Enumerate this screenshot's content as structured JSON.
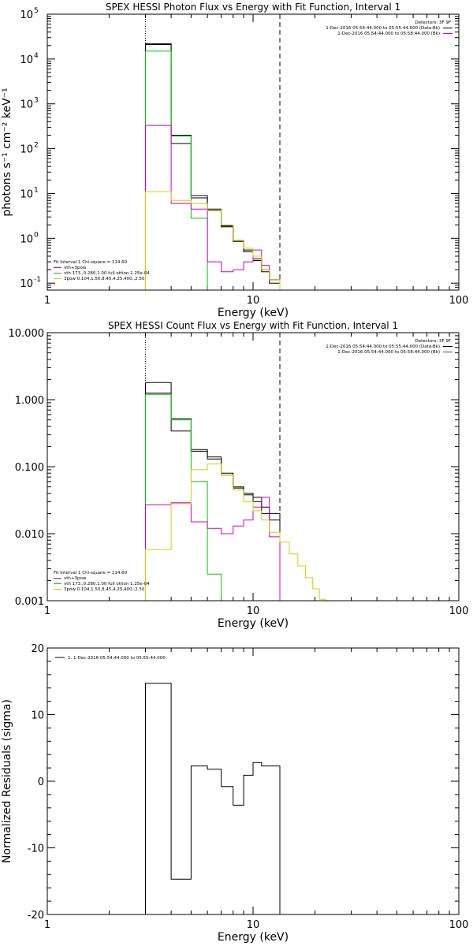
{
  "chart_data": [
    {
      "type": "line",
      "title": "SPEX HESSI Photon Flux vs Energy with Fit Function, Interval 1",
      "xlabel": "Energy (keV)",
      "ylabel": "photons s⁻¹ cm⁻² keV⁻¹",
      "xscale": "log",
      "yscale": "log",
      "xlim": [
        1,
        100
      ],
      "ylim": [
        0.07,
        100000
      ],
      "xticks": [
        {
          "v": 1,
          "label": "1"
        },
        {
          "v": 10,
          "label": "10"
        },
        {
          "v": 100,
          "label": "100"
        }
      ],
      "yticks": [
        {
          "v": 0.1,
          "label": "10",
          "exp": "-1"
        },
        {
          "v": 1,
          "label": "10",
          "exp": "0"
        },
        {
          "v": 10,
          "label": "10",
          "exp": "1"
        },
        {
          "v": 100,
          "label": "10",
          "exp": "2"
        },
        {
          "v": 1000,
          "label": "10",
          "exp": "3"
        },
        {
          "v": 10000,
          "label": "10",
          "exp": "4"
        },
        {
          "v": 100000,
          "label": "10",
          "exp": "5"
        }
      ],
      "vlines": [
        {
          "x": 3,
          "style": "dotted"
        },
        {
          "x": 13.5,
          "style": "dashed"
        }
      ],
      "info": {
        "detectors": "Detectors: 3F 9F",
        "line1": "1-Dec-2016 05:54:44.000 to 05:55:44.000 (Data-Bk)",
        "line2": "1-Dec-2016 05:54:44.000 to 05:58:44.000 (Bk)",
        "line1_color": "#000000",
        "line2_color": "#cc00cc"
      },
      "fit_legend": {
        "header": "Fit Interval 1   Chi-square = 114.60",
        "entries": [
          {
            "label": "vth+3pow",
            "color": "#cc00cc"
          },
          {
            "label": "vth 173.,0.280,1.00  full ottion 1.25e-04",
            "color": "#00cc00"
          },
          {
            "label": "3pow 0.104,1.50,8.45,4.25,400.,2.50",
            "color": "#ddcc00"
          }
        ]
      },
      "series": [
        {
          "color": "#000000",
          "edges": [
            3,
            4,
            5,
            6,
            7,
            8,
            9,
            10,
            11,
            12,
            13.5
          ],
          "values": [
            22000,
            130,
            9,
            4.5,
            1.9,
            0.9,
            0.55,
            0.35,
            0.2,
            0.12
          ]
        },
        {
          "color": "#000000",
          "edges": [
            3,
            4,
            5,
            6,
            7,
            8,
            9,
            10,
            11,
            12,
            13.5
          ],
          "values": [
            21000,
            200,
            8,
            4.2,
            1.8,
            0.85,
            0.5,
            0.32,
            0.18,
            0.1
          ]
        },
        {
          "color": "#00cc00",
          "edges": [
            3,
            4,
            5,
            6
          ],
          "values": [
            15000,
            190,
            2.8
          ]
        },
        {
          "color": "#cc00cc",
          "edges": [
            3,
            4,
            5,
            6,
            7,
            8,
            9,
            10,
            11,
            12,
            13.5
          ],
          "values": [
            330,
            6,
            4.5,
            0.3,
            0.18,
            0.2,
            0.3,
            0.55,
            0.25,
            0.12
          ]
        },
        {
          "color": "#ddcc00",
          "edges": [
            3,
            4,
            5,
            6,
            7,
            8,
            9,
            10,
            11,
            12,
            13.5
          ],
          "values": [
            11,
            7,
            6,
            4.3,
            2,
            0.9,
            0.6,
            0.4,
            0.2,
            0.12
          ]
        }
      ]
    },
    {
      "type": "line",
      "title": "SPEX HESSI Count Flux vs Energy with Fit Function, Interval 1",
      "xlabel": "Energy (keV)",
      "ylabel": "",
      "xscale": "log",
      "yscale": "log",
      "xlim": [
        1,
        100
      ],
      "ylim": [
        0.001,
        10
      ],
      "xticks": [
        {
          "v": 1,
          "label": "1"
        },
        {
          "v": 10,
          "label": "10"
        },
        {
          "v": 100,
          "label": "100"
        }
      ],
      "yticks": [
        {
          "v": 0.001,
          "label": "0.001"
        },
        {
          "v": 0.01,
          "label": "0.010"
        },
        {
          "v": 0.1,
          "label": "0.100"
        },
        {
          "v": 1,
          "label": "1.000"
        },
        {
          "v": 10,
          "label": "10.000"
        }
      ],
      "vlines": [
        {
          "x": 3,
          "style": "dotted"
        },
        {
          "x": 13.5,
          "style": "dashed"
        }
      ],
      "info": {
        "detectors": "Detectors: 3F 9F",
        "line1": "1-Dec-2016 05:54:44.000 to 05:55:44.000 (Data-Bk)",
        "line2": "1-Dec-2016 05:54:44.000 to 05:58:44.000 (Bk)",
        "line1_color": "#000000",
        "line2_color": "#cc00cc"
      },
      "fit_legend": {
        "header": "Fit Interval 1   Chi-square = 114.60",
        "entries": [
          {
            "label": "vth+3pow",
            "color": "#cc00cc"
          },
          {
            "label": "vth 173.,0.280,1.00  full ottion 1.25e-04",
            "color": "#00cc00"
          },
          {
            "label": "3pow 0.104,1.50,8.45,4.25,400.,2.50",
            "color": "#ddcc00"
          }
        ]
      },
      "series": [
        {
          "color": "#000000",
          "edges": [
            3,
            4,
            5,
            6,
            7,
            8,
            9,
            10,
            11,
            12,
            13.5
          ],
          "values": [
            1.8,
            0.34,
            0.18,
            0.14,
            0.08,
            0.05,
            0.04,
            0.035,
            0.025,
            0.02
          ]
        },
        {
          "color": "#000000",
          "edges": [
            3,
            4,
            5,
            6,
            7,
            8,
            9,
            10,
            11,
            12,
            13.5
          ],
          "values": [
            1.25,
            0.52,
            0.17,
            0.13,
            0.075,
            0.048,
            0.038,
            0.03,
            0.02,
            0.016
          ]
        },
        {
          "color": "#00cc00",
          "edges": [
            3,
            4,
            5,
            6,
            7
          ],
          "values": [
            1.2,
            0.5,
            0.06,
            0.0025
          ]
        },
        {
          "color": "#cc00cc",
          "edges": [
            3,
            4,
            5,
            6,
            7,
            8,
            9,
            10,
            11,
            12,
            13.5
          ],
          "values": [
            0.027,
            0.029,
            0.015,
            0.012,
            0.01,
            0.013,
            0.016,
            0.025,
            0.035,
            0.009
          ]
        },
        {
          "color": "#ddcc00",
          "edges": [
            3,
            4,
            5,
            6,
            7,
            8,
            9,
            10,
            11,
            12,
            13.5,
            15,
            16.5,
            18,
            19.5,
            21,
            22.5
          ],
          "values": [
            0.0058,
            0.028,
            0.09,
            0.11,
            0.075,
            0.045,
            0.03,
            0.022,
            0.016,
            0.0105,
            0.0075,
            0.005,
            0.0033,
            0.0022,
            0.0015,
            0.00105
          ]
        }
      ]
    },
    {
      "type": "line",
      "title": "",
      "xlabel": "Energy (keV)",
      "ylabel": "Normalized Residuals (sigma)",
      "xscale": "log",
      "yscale": "linear",
      "xlim": [
        1,
        100
      ],
      "ylim": [
        -20,
        20
      ],
      "xticks": [
        {
          "v": 1,
          "label": "1"
        },
        {
          "v": 10,
          "label": "10"
        },
        {
          "v": 100,
          "label": "100"
        }
      ],
      "yticks": [
        {
          "v": -20,
          "label": "-20"
        },
        {
          "v": -10,
          "label": "-10"
        },
        {
          "v": 0,
          "label": "0"
        },
        {
          "v": 10,
          "label": "10"
        },
        {
          "v": 20,
          "label": "20"
        }
      ],
      "vlines": [],
      "info": {
        "line1": "1.  1-Dec-2016 05:54:44.000 to 05:55:44.000",
        "line1_color": "#000000"
      },
      "series": [
        {
          "color": "#000000",
          "edges": [
            3,
            4,
            5,
            6,
            7,
            8,
            9,
            10,
            11,
            12,
            13.5
          ],
          "values": [
            14.7,
            -14.7,
            2.3,
            1.8,
            -0.8,
            -3.6,
            0.9,
            2.8,
            2.3,
            2.3
          ],
          "baseline_ends": true
        }
      ]
    }
  ]
}
